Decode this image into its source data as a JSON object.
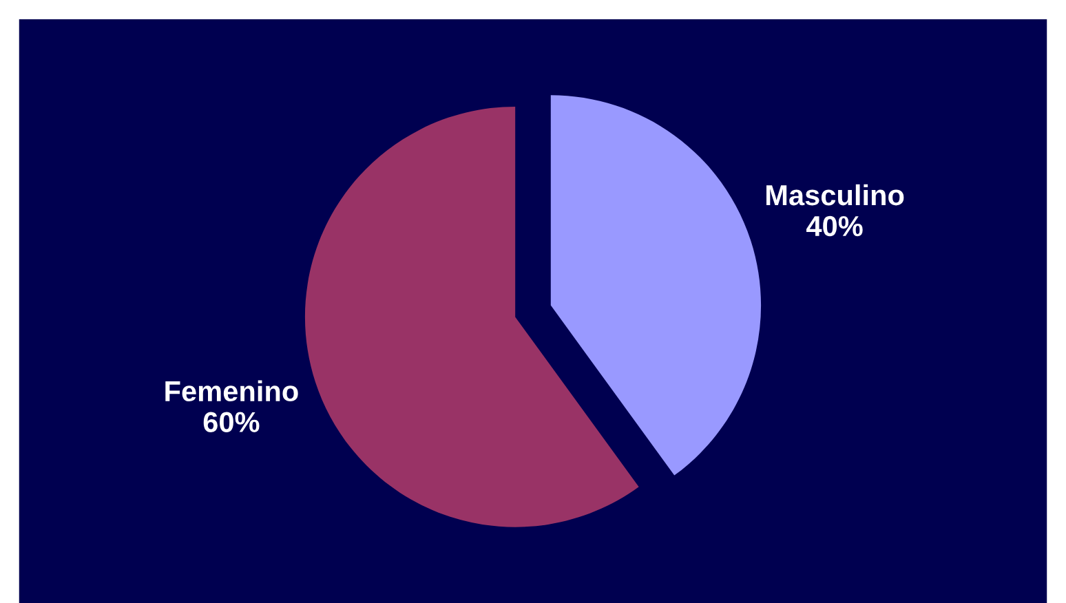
{
  "chart_data": {
    "type": "pie",
    "categories": [
      "Masculino",
      "Femenino"
    ],
    "values": [
      40,
      60
    ],
    "colors": [
      "#9999ff",
      "#993366"
    ],
    "value_labels": [
      "40%",
      "60%"
    ],
    "legend": false
  }
}
